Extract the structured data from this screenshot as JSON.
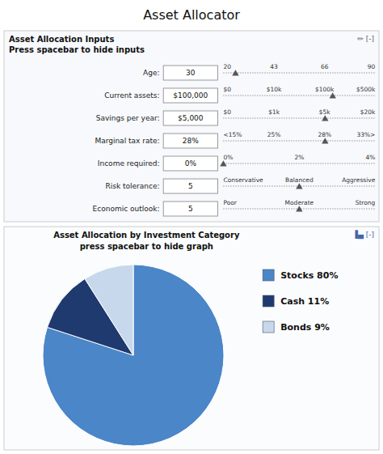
{
  "title": "Asset Allocator",
  "inputs": {
    "title": [
      "Asset Allocation Inputs",
      "Press spacebar to hide inputs"
    ],
    "icon": "✏  [-]",
    "rows": [
      {
        "label": "Age:",
        "value": "30",
        "ticks": [
          "20",
          "43",
          "66",
          "90"
        ],
        "marker_pos": 0.08
      },
      {
        "label": "Current assets:",
        "value": "$100,000",
        "ticks": [
          "$0",
          "$10k",
          "$100k",
          "$500k"
        ],
        "marker_pos": 0.72
      },
      {
        "label": "Savings per year:",
        "value": "$5,000",
        "ticks": [
          "$0",
          "$1k",
          "$5k",
          "$20k"
        ],
        "marker_pos": 0.67
      },
      {
        "label": "Marginal tax rate:",
        "value": "28%",
        "ticks": [
          "<15%",
          "25%",
          "28%",
          "33%>"
        ],
        "marker_pos": 0.67
      },
      {
        "label": "Income required:",
        "value": "0%",
        "ticks": [
          "0%",
          "2%",
          "4%"
        ],
        "marker_pos": 0.0
      },
      {
        "label": "Risk tolerance:",
        "value": "5",
        "ticks": [
          "Conservative",
          "Balanced",
          "Aggressive"
        ],
        "marker_pos": 0.5
      },
      {
        "label": "Economic outlook:",
        "value": "5",
        "ticks": [
          "Poor",
          "Moderate",
          "Strong"
        ],
        "marker_pos": 0.5
      }
    ]
  },
  "chart_data": {
    "type": "pie",
    "title": "Asset Allocation by Investment Category\npress spacebar to hide graph",
    "icon": "▐▄ [-]",
    "categories": [
      "Stocks 80%",
      "Cash 11%",
      "Bonds 9%"
    ],
    "values": [
      80,
      11,
      9
    ],
    "colors": [
      "#4a86c8",
      "#1f3a6e",
      "#c8d8ec"
    ],
    "legend": "right"
  }
}
